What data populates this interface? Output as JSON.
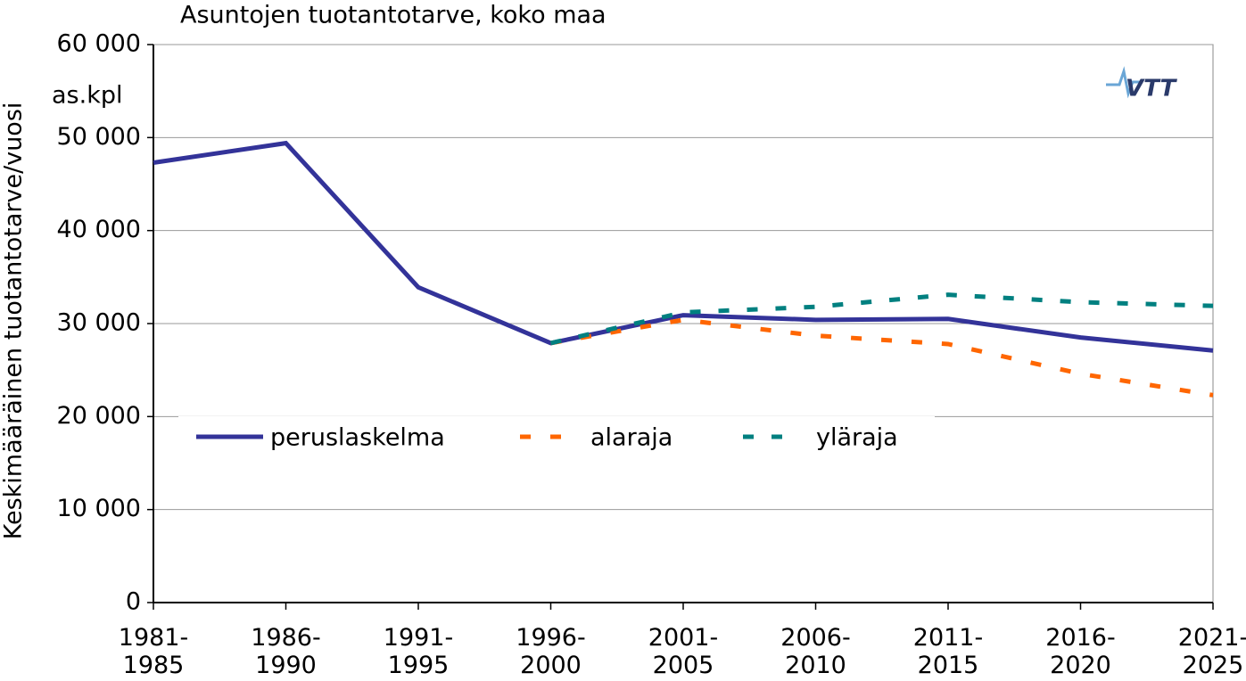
{
  "chart_data": {
    "type": "line",
    "title": "Asuntojen tuotantotarve, koko maa",
    "y_label": "Keskimääräinen tuotantotarve/vuosi",
    "unit": "as.kpl",
    "logo": "VTT",
    "categories": [
      "1981-\n1985",
      "1986-\n1990",
      "1991-\n1995",
      "1996-\n2000",
      "2001-\n2005",
      "2006-\n2010",
      "2011-\n2015",
      "2016-\n2020",
      "2021-\n2025"
    ],
    "series": [
      {
        "name": "peruslaskelma",
        "color": "#333399",
        "values": [
          47300,
          49400,
          33900,
          27900,
          30900,
          30400,
          30500,
          28500,
          27100
        ]
      },
      {
        "name": "alaraja",
        "color": "#ff6600",
        "values": [
          null,
          null,
          null,
          27900,
          30400,
          28700,
          27800,
          24600,
          22300
        ]
      },
      {
        "name": "yläraja",
        "color": "#008080",
        "values": [
          null,
          null,
          null,
          27900,
          31200,
          31800,
          33100,
          32300,
          31900
        ]
      }
    ],
    "ylim": [
      0,
      60000
    ],
    "yticks": [
      0,
      {
        "value": 10000,
        "label": "10 000"
      },
      {
        "value": 20000,
        "label": "20 000"
      },
      {
        "value": 30000,
        "label": "30 000"
      },
      {
        "value": 40000,
        "label": "40 000"
      },
      {
        "value": 50000,
        "label": "50 000"
      },
      {
        "value": 60000,
        "label": "60 000"
      }
    ],
    "grid": true
  }
}
